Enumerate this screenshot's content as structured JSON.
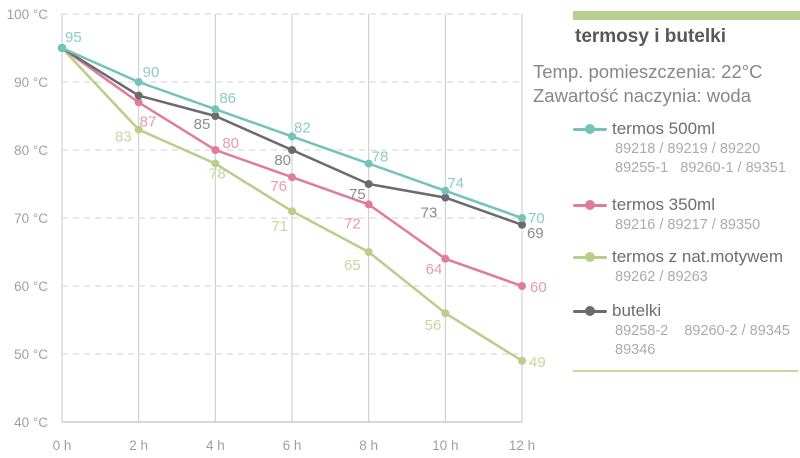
{
  "panel": {
    "title": "termosy i butelki",
    "info_lines": [
      "Temp. pomieszczenia: 22°C",
      "Zawartość naczynia: woda"
    ],
    "accent_color": "#b7cf8d"
  },
  "chart_data": {
    "type": "line",
    "title": "termosy i butelki",
    "x": [
      0,
      2,
      4,
      6,
      8,
      10,
      12
    ],
    "x_tick_labels": [
      "0 h",
      "2 h",
      "4 h",
      "6 h",
      "8 h",
      "10 h",
      "12 h"
    ],
    "xlabel": "",
    "ylabel": "",
    "y_ticks": [
      100,
      90,
      80,
      70,
      60,
      50,
      40
    ],
    "y_tick_labels": [
      "100 °C",
      "90 °C",
      "80 °C",
      "70 °C",
      "60 °C",
      "50 °C",
      "40 °C"
    ],
    "ylim": [
      40,
      100
    ],
    "grid": "horizontal-dashed, vertical-solid",
    "legend_position": "right",
    "series": [
      {
        "name": "termos 500ml",
        "color": "#74c3ba",
        "label_color": "#8cccc4",
        "values": [
          95,
          90,
          86,
          82,
          78,
          74,
          70
        ],
        "point_labels": [
          "95",
          "90",
          "86",
          "82",
          "78",
          "74",
          "70"
        ],
        "codes": [
          "89218 / 89219 / 89220",
          "89255-1   89260-1 / 89351"
        ]
      },
      {
        "name": "termos 350ml",
        "color": "#e07b9d",
        "label_color": "#e39cb2",
        "values": [
          95,
          87,
          80,
          76,
          72,
          64,
          60
        ],
        "point_labels": [
          "",
          "87",
          "80",
          "76",
          "72",
          "64",
          "60"
        ],
        "codes": [
          "89216 / 89217 / 89350"
        ]
      },
      {
        "name": "termos z nat.motywem",
        "color": "#b8ce89",
        "label_color": "#c6d69d",
        "values": [
          95,
          83,
          78,
          71,
          65,
          56,
          49
        ],
        "point_labels": [
          "",
          "83",
          "78",
          "71",
          "65",
          "56",
          "49"
        ],
        "codes": [
          "89262 / 89263"
        ]
      },
      {
        "name": "butelki",
        "color": "#6b6b6b",
        "label_color": "#8b8b8b",
        "values": [
          95,
          88,
          85,
          80,
          75,
          73,
          69
        ],
        "point_labels": [
          "",
          "",
          "85",
          "80",
          "75",
          "73",
          "69"
        ],
        "codes": [
          "89258-2    89260-2 / 89345",
          "89346"
        ]
      }
    ]
  }
}
